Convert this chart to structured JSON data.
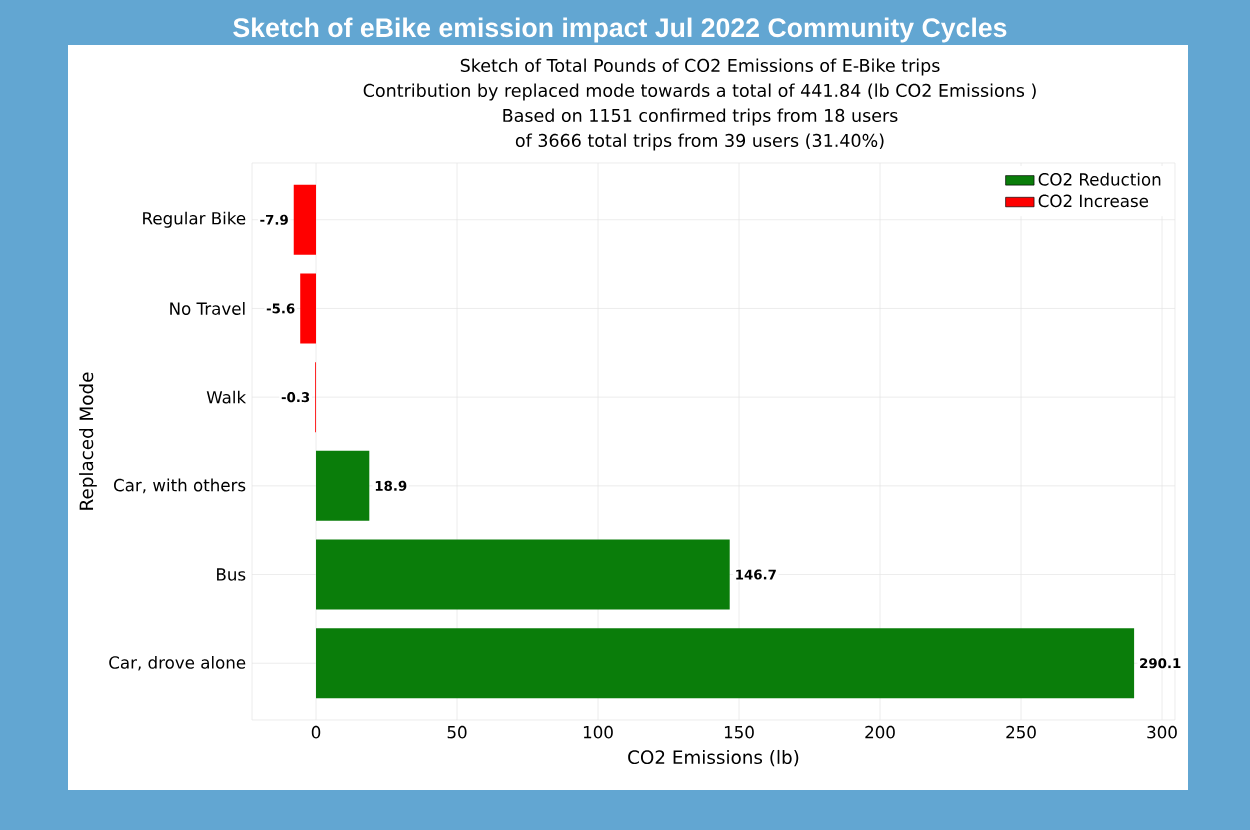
{
  "chart_data": {
    "type": "bar",
    "orientation": "horizontal",
    "title": "Sketch of eBike emission impact Jul 2022 Community Cycles",
    "subtitle": "Sketch of Total Pounds of CO2 Emissions of E-Bike trips",
    "annotations": [
      "Contribution by replaced mode towards a total of 441.84 (lb CO2 Emissions )",
      "Based on 1151 confirmed trips from 18 users",
      "of 3666 total trips from 39 users (31.40%)"
    ],
    "xlabel": "CO2 Emissions (lb)",
    "ylabel": "Replaced Mode",
    "categories": [
      "Regular Bike",
      "No Travel",
      "Walk",
      "Car, with others",
      "Bus",
      "Car, drove alone"
    ],
    "series": [
      {
        "name": "CO2 Reduction",
        "color": "#0a7d0a",
        "values": [
          null,
          null,
          null,
          18.9,
          146.7,
          290.1
        ]
      },
      {
        "name": "CO2 Increase",
        "color": "#ff0000",
        "values": [
          -7.9,
          -5.6,
          -0.3,
          null,
          null,
          null
        ]
      }
    ],
    "xlim": [
      -22.7,
      304.6
    ],
    "xticks": [
      0,
      50,
      100,
      150,
      200,
      250,
      300
    ],
    "grid": true,
    "legend": "top right",
    "data_labels": true
  }
}
